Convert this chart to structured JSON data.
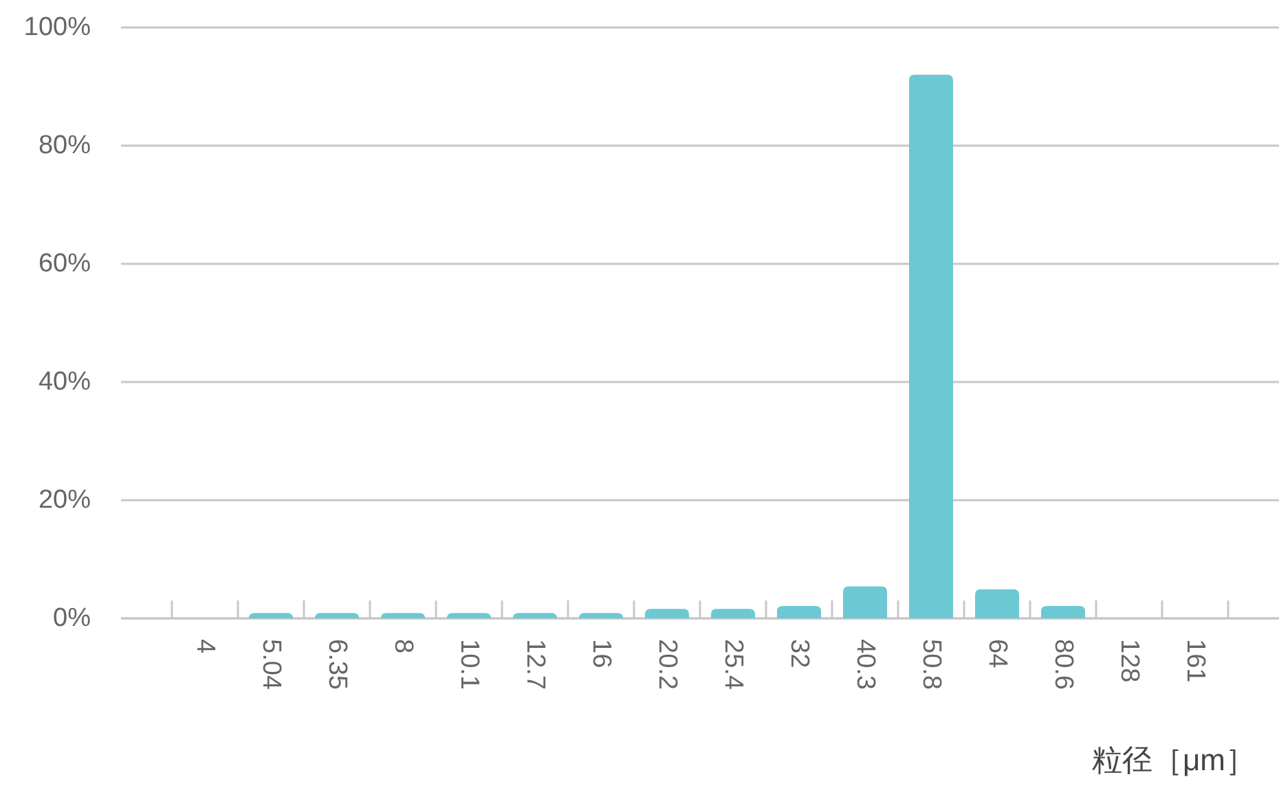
{
  "chart_data": {
    "type": "bar",
    "xlabel": "粒径［μm］",
    "categories": [
      "4",
      "5.04",
      "6.35",
      "8",
      "10.1",
      "12.7",
      "16",
      "20.2",
      "25.4",
      "32",
      "40.3",
      "50.8",
      "64",
      "80.6",
      "128",
      "161"
    ],
    "values": [
      0,
      0.9,
      0.9,
      0.9,
      0.9,
      0.9,
      0.9,
      1.6,
      1.6,
      2.1,
      5.4,
      92,
      4.9,
      2.1,
      0,
      0
    ],
    "color": "#6cc8d3",
    "ylim": [
      0,
      100
    ],
    "yticks": [
      {
        "value": 0,
        "label": "0%"
      },
      {
        "value": 20,
        "label": "20%"
      },
      {
        "value": 40,
        "label": "40%"
      },
      {
        "value": 60,
        "label": "60%"
      },
      {
        "value": 80,
        "label": "80%"
      },
      {
        "value": 100,
        "label": "100%"
      }
    ],
    "grid": "y"
  }
}
